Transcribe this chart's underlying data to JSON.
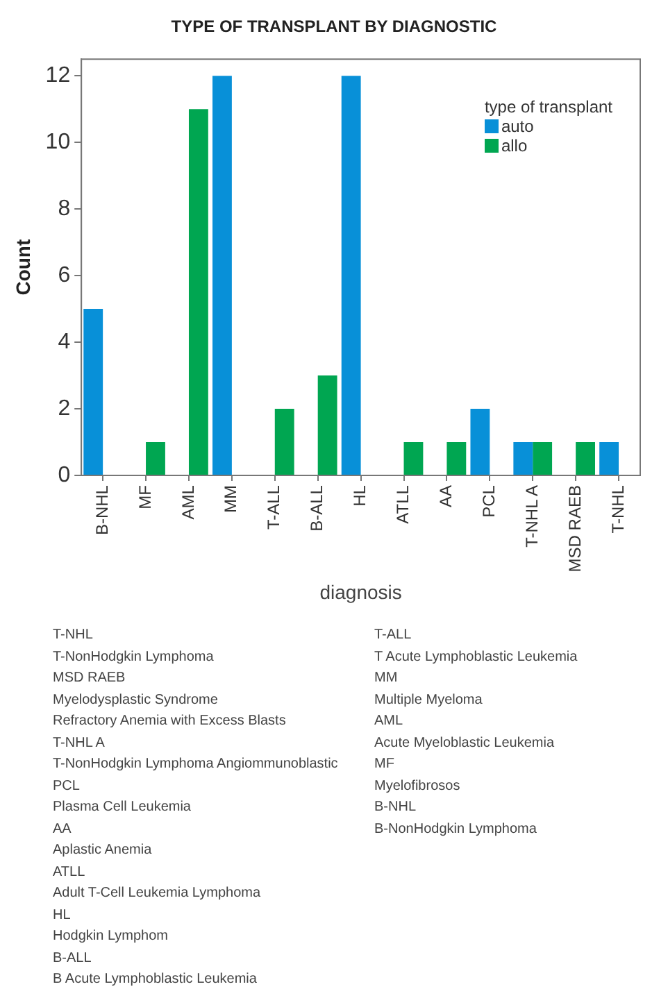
{
  "chart_data": {
    "type": "bar",
    "title": "TYPE OF TRANSPLANT BY DIAGNOSTIC",
    "xlabel": "diagnosis",
    "ylabel": "Count",
    "legend_title": "type of transplant",
    "legend": "top right",
    "grid": false,
    "categories": [
      "B-NHL",
      "MF",
      "AML",
      "MM",
      "T-ALL",
      "B-ALL",
      "HL",
      "ATLL",
      "AA",
      "PCL",
      "T-NHL A",
      "MSD RAEB",
      "T-NHL"
    ],
    "series": [
      {
        "name": "auto",
        "color": "#0890d8",
        "values": [
          5,
          null,
          null,
          12,
          null,
          null,
          12,
          null,
          null,
          2,
          1,
          null,
          1
        ]
      },
      {
        "name": "allo",
        "color": "#00a651",
        "values": [
          null,
          1,
          11,
          null,
          2,
          3,
          null,
          1,
          1,
          null,
          1,
          1,
          null
        ]
      }
    ],
    "ylim": [
      0,
      12.5
    ],
    "yticks": [
      0,
      2,
      4,
      6,
      8,
      10,
      12
    ],
    "annotations": [
      "T-NHL",
      "T-NonHodgkin Lymphoma",
      "MSD RAEB",
      "Myelodysplastic Syndrome",
      "Refractory Anemia with Excess Blasts",
      "T-NHL A",
      "T-NonHodgkin Lymphoma Angiommunoblastic",
      "PCL",
      "Plasma Cell Leukemia",
      "AA",
      "Aplastic Anemia",
      "ATLL",
      "Adult T-Cell Leukemia Lymphoma",
      "HL",
      "Hodgkin Lymphom",
      "B-ALL",
      "B Acute Lymphoblastic Leukemia",
      "T-ALL",
      "T Acute Lymphoblastic Leukemia",
      "MM",
      "Multiple Myeloma",
      "AML",
      "Acute Myeloblastic Leukemia",
      "MF",
      "Myelofibrosos",
      "B-NHL",
      "B-NonHodgkin Lymphoma"
    ]
  }
}
